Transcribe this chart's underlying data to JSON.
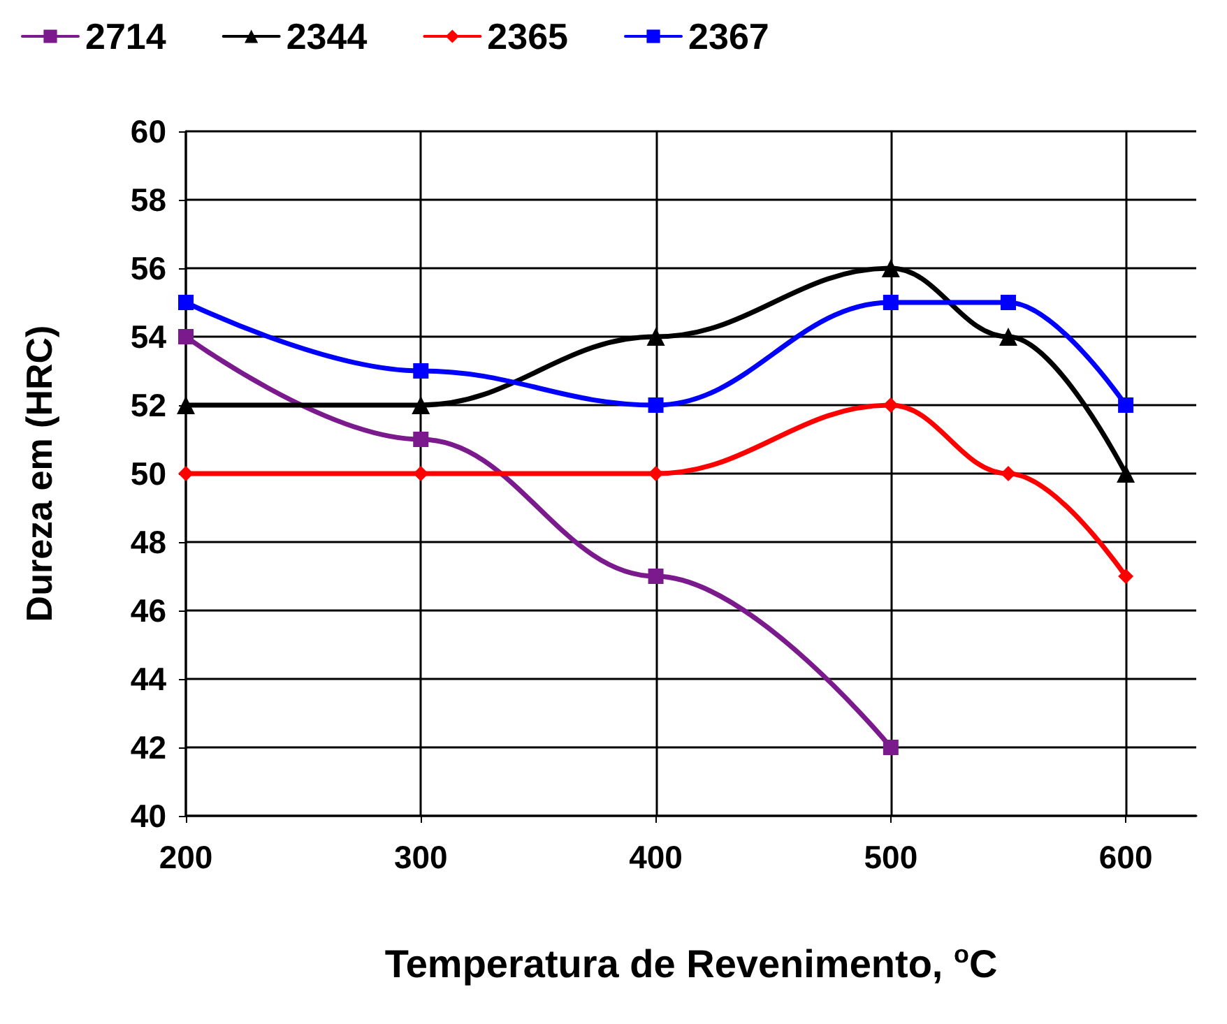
{
  "chart_data": {
    "type": "line",
    "xlabel": "Temperatura de Revenimento, $^{o}$C",
    "ylabel": "Dureza em (HRC)",
    "x": [
      200,
      300,
      400,
      500,
      550,
      600
    ],
    "series": [
      {
        "name": "2714",
        "color": "#7b1a8c",
        "marker": "square",
        "x": [
          200,
          300,
          400,
          500
        ],
        "values": [
          54,
          51,
          47,
          42
        ]
      },
      {
        "name": "2344",
        "color": "#000000",
        "marker": "triangle",
        "values": [
          52,
          52,
          54,
          56,
          54,
          50
        ]
      },
      {
        "name": "2365",
        "color": "#ff0000",
        "marker": "diamond",
        "values": [
          50,
          50,
          50,
          52,
          50,
          47
        ]
      },
      {
        "name": "2367",
        "color": "#0000ff",
        "marker": "square",
        "values": [
          55,
          53,
          52,
          55,
          55,
          52
        ]
      }
    ],
    "xlim": [
      200,
      630
    ],
    "xticks": [
      200,
      300,
      400,
      500,
      600
    ],
    "ylim": [
      40,
      60
    ],
    "yticks": [
      40,
      42,
      44,
      46,
      48,
      50,
      52,
      54,
      56,
      58,
      60
    ],
    "grid": true,
    "legend": "top",
    "line_style": "solid"
  }
}
